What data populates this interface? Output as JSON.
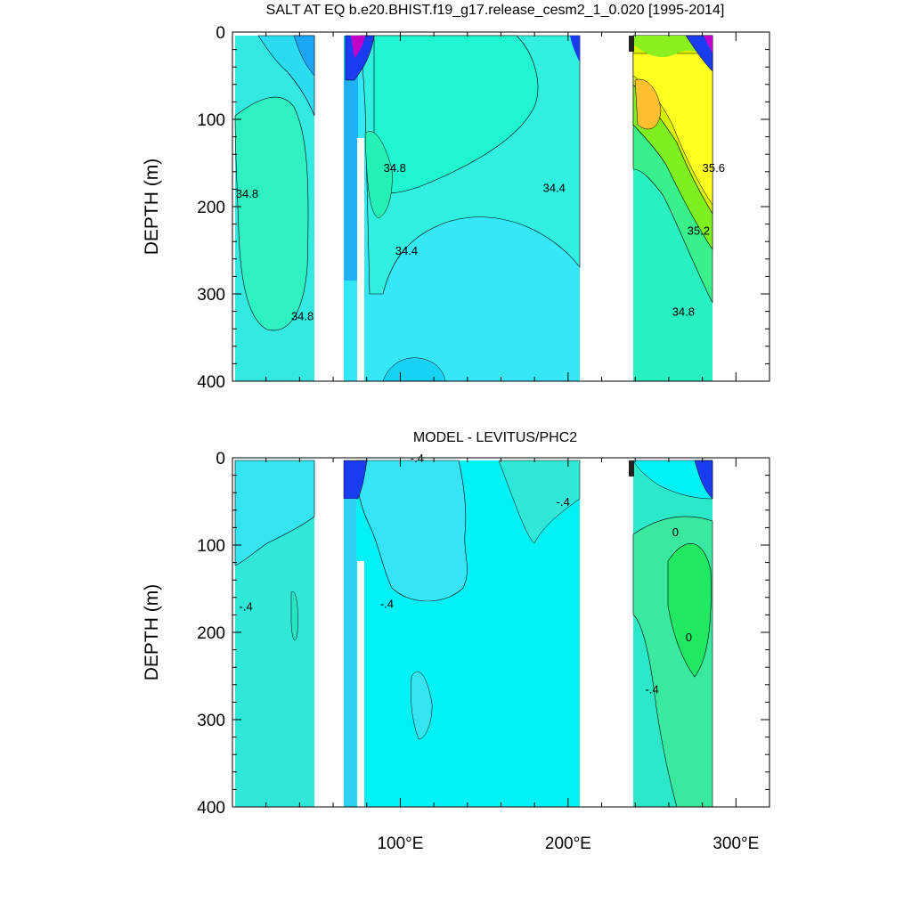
{
  "chart_data": [
    {
      "type": "contour",
      "title": "SALT AT EQ b.e20.BHIST.f19_g17.release_cesm2_1_0.020 [1995-2014]",
      "xlabel": "",
      "ylabel": "DEPTH (m)",
      "xlim": [
        0,
        320
      ],
      "ylim": [
        0,
        400
      ],
      "y_reversed": true,
      "y_ticks": [
        "0",
        "100",
        "200",
        "300",
        "400"
      ],
      "x_ticks": [],
      "contour_labels": [
        {
          "text": "34.8",
          "x": 2,
          "y": 190
        },
        {
          "text": "34.8",
          "x": 35,
          "y": 330
        },
        {
          "text": "34.8",
          "x": 90,
          "y": 160
        },
        {
          "text": "34.4",
          "x": 97,
          "y": 255
        },
        {
          "text": "34.4",
          "x": 185,
          "y": 183
        },
        {
          "text": "35.6",
          "x": 280,
          "y": 160
        },
        {
          "text": "35.2",
          "x": 271,
          "y": 232
        },
        {
          "text": "34.8",
          "x": 262,
          "y": 325
        }
      ]
    },
    {
      "type": "contour",
      "title": "MODEL - LEVITUS/PHC2",
      "xlabel": "",
      "ylabel": "DEPTH (m)",
      "xlim": [
        0,
        320
      ],
      "ylim": [
        0,
        400
      ],
      "y_reversed": true,
      "y_ticks": [
        "0",
        "100",
        "200",
        "300",
        "400"
      ],
      "x_ticks": [
        "100°E",
        "200°E",
        "300°E"
      ],
      "contour_labels": [
        {
          "text": "-.4",
          "x": 4,
          "y": 175
        },
        {
          "text": "-.4",
          "x": 106,
          "y": 5
        },
        {
          "text": "-.4",
          "x": 193,
          "y": 55
        },
        {
          "text": "-.4",
          "x": 88,
          "y": 172
        },
        {
          "text": "0",
          "x": 262,
          "y": 90
        },
        {
          "text": "0",
          "x": 270,
          "y": 210
        },
        {
          "text": "-.4",
          "x": 246,
          "y": 270
        }
      ]
    }
  ]
}
